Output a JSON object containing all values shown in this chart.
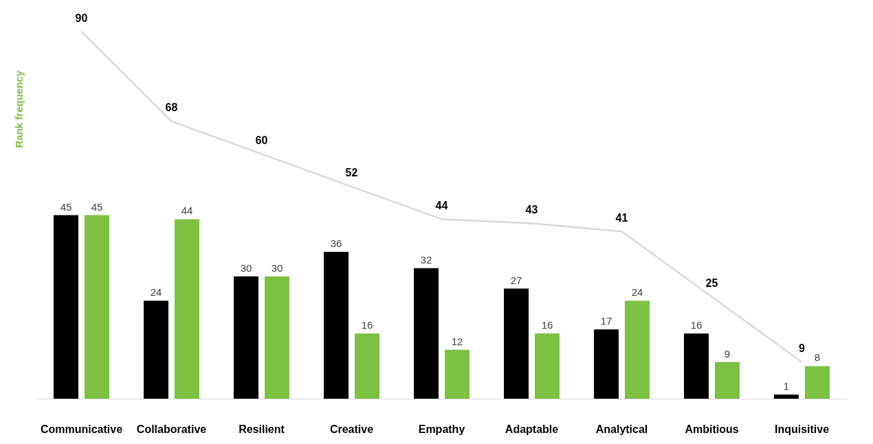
{
  "chart_data": {
    "type": "bar",
    "ylabel": "Rank frequency",
    "categories": [
      "Communicative",
      "Collaborative",
      "Resilient",
      "Creative",
      "Empathy",
      "Adaptable",
      "Analytical",
      "Ambitious",
      "Inquisitive"
    ],
    "series": [
      {
        "color": "#000000",
        "values": [
          45,
          24,
          30,
          36,
          32,
          27,
          17,
          16,
          1
        ]
      },
      {
        "color": "#7dc142",
        "values": [
          45,
          44,
          30,
          16,
          12,
          16,
          24,
          9,
          8
        ]
      },
      {
        "type": "line",
        "color": "#d9d9d9",
        "marker": "none",
        "values": [
          90,
          68,
          60,
          52,
          44,
          43,
          41,
          25,
          9
        ]
      }
    ],
    "data_labels": true,
    "grid": false
  }
}
